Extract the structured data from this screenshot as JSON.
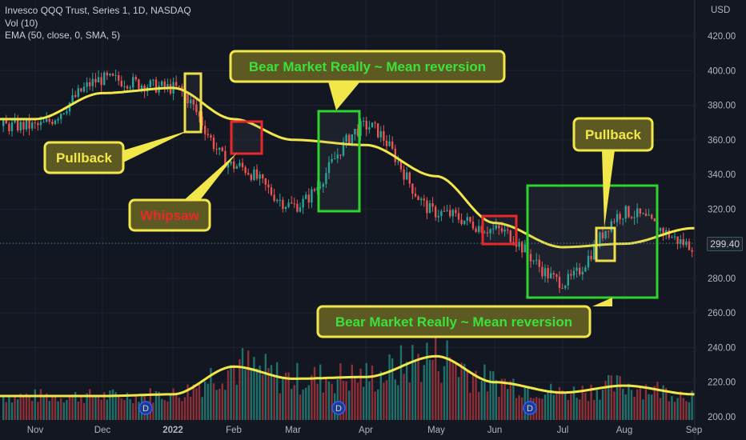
{
  "legend": {
    "line1": "Invesco QQQ Trust, Series 1, 1D, NASDAQ",
    "line2": "Vol (10)",
    "line3": "EMA (50, close, 0, SMA, 5)"
  },
  "currency": "USD",
  "last_price": "299.40",
  "colors": {
    "background": "#131722",
    "up": "#26a69a",
    "down": "#ef5350",
    "ema": "#f2e74a",
    "green_box": "#2ed32e",
    "red_box": "#e8282a",
    "yellow_box": "#efe04a"
  },
  "chart_data": {
    "type": "candlestick",
    "y_range": [
      200,
      420
    ],
    "y_ticks": [
      "420.00",
      "400.00",
      "380.00",
      "360.00",
      "340.00",
      "320.00",
      "300.00",
      "280.00",
      "260.00",
      "240.00",
      "220.00",
      "200.00"
    ],
    "x_ticks": [
      "Nov",
      "Dec",
      "2022",
      "Feb",
      "Mar",
      "Apr",
      "May",
      "Jun",
      "Jul",
      "Aug",
      "Sep"
    ],
    "grid": true,
    "ema_overlay": [
      [
        "Nov",
        372
      ],
      [
        "Dec",
        387
      ],
      [
        "2022",
        390
      ],
      [
        "Feb",
        372
      ],
      [
        "Mar",
        360
      ],
      [
        "Apr",
        357
      ],
      [
        "May",
        339
      ],
      [
        "Jun",
        312
      ],
      [
        "Jul",
        298
      ],
      [
        "Aug",
        300
      ],
      [
        "Sep",
        309
      ]
    ],
    "volume_overlay": [
      [
        "Nov",
        212
      ],
      [
        "Dec",
        212
      ],
      [
        "2022",
        213
      ],
      [
        "Feb",
        229
      ],
      [
        "Mar",
        222
      ],
      [
        "Apr",
        223
      ],
      [
        "May",
        235
      ],
      [
        "Jun",
        220
      ],
      [
        "Jul",
        214
      ],
      [
        "Aug",
        218
      ],
      [
        "Sep",
        213
      ]
    ],
    "candle_path": [
      [
        "Nov",
        368
      ],
      [
        "Dec",
        395
      ],
      [
        "2022",
        390
      ],
      [
        "Feb",
        345
      ],
      [
        "Mar",
        322
      ],
      [
        "Apr",
        368
      ],
      [
        "May",
        318
      ],
      [
        "Jun",
        308
      ],
      [
        "Jul",
        278
      ],
      [
        "Aug",
        318
      ],
      [
        "Sep",
        299
      ]
    ],
    "dividend_markers": [
      "D",
      "D",
      "D"
    ],
    "annotations": [
      {
        "label": "Bear Market Really ~ Mean reversion"
      },
      {
        "label": "Pullback"
      },
      {
        "label": "Whipsaw"
      },
      {
        "label": "Pullback"
      },
      {
        "label": "Bear Market Really ~ Mean reversion"
      }
    ]
  }
}
